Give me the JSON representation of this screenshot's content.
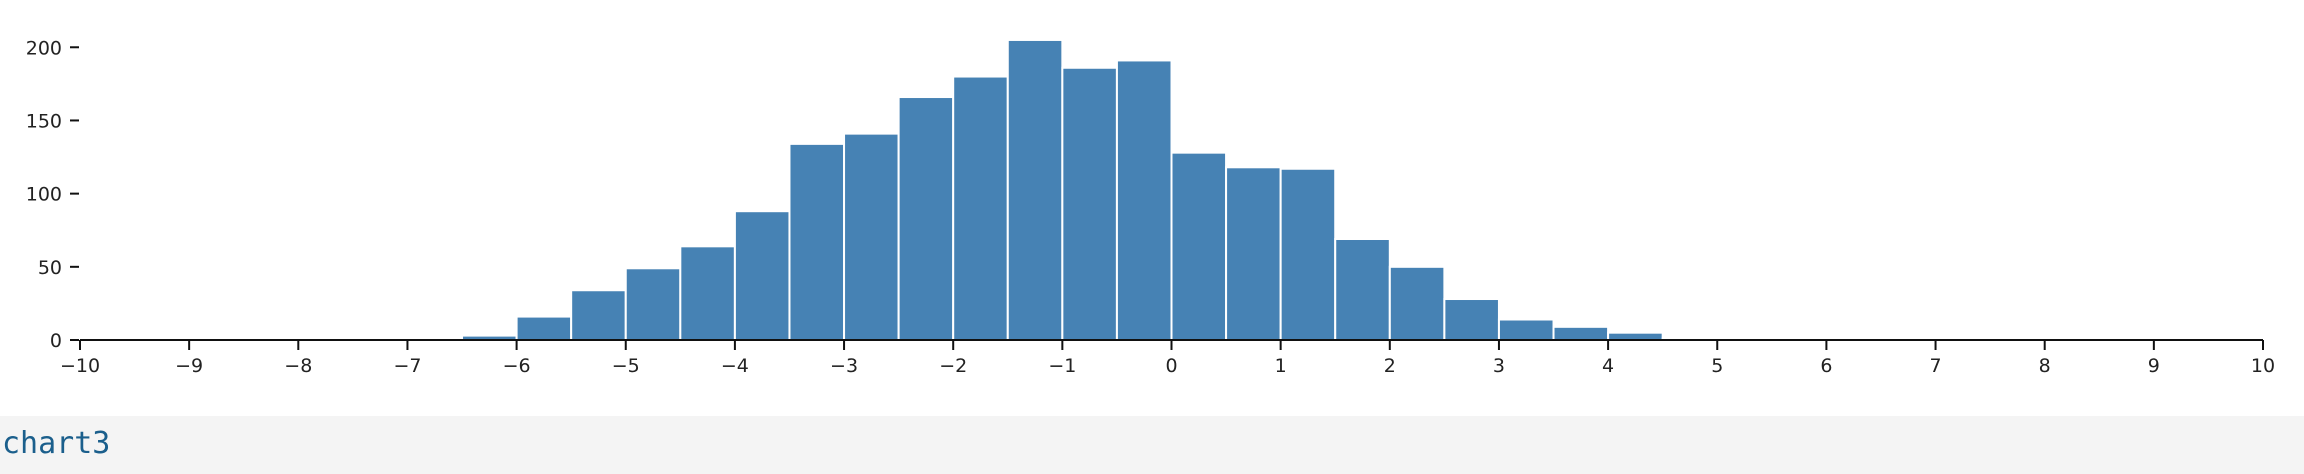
{
  "colors": {
    "bar": "#4682b4",
    "axis": "#111111",
    "footer_bg": "#f4f4f4",
    "footer_text": "#1b5f8c"
  },
  "footer": {
    "label": "chart3"
  },
  "chart_data": {
    "type": "bar",
    "title": "",
    "xlabel": "",
    "ylabel": "",
    "xlim": [
      -10,
      10
    ],
    "ylim": [
      0,
      220
    ],
    "bin_width": 0.5,
    "grid": false,
    "x_ticks": [
      -10,
      -9,
      -8,
      -7,
      -6,
      -5,
      -4,
      -3,
      -2,
      -1,
      0,
      1,
      2,
      3,
      4,
      5,
      6,
      7,
      8,
      9,
      10
    ],
    "x_tick_labels": [
      "−10",
      "−9",
      "−8",
      "−7",
      "−6",
      "−5",
      "−4",
      "−3",
      "−2",
      "−1",
      "0",
      "1",
      "2",
      "3",
      "4",
      "5",
      "6",
      "7",
      "8",
      "9",
      "10"
    ],
    "y_ticks": [
      0,
      50,
      100,
      150,
      200
    ],
    "y_tick_labels": [
      "0",
      "50",
      "100",
      "150",
      "200"
    ],
    "bins": [
      {
        "x0": -8.0,
        "x1": -7.5,
        "count": 1
      },
      {
        "x0": -7.5,
        "x1": -7.0,
        "count": 1
      },
      {
        "x0": -6.5,
        "x1": -6.0,
        "count": 3
      },
      {
        "x0": -6.0,
        "x1": -5.5,
        "count": 16
      },
      {
        "x0": -5.5,
        "x1": -5.0,
        "count": 34
      },
      {
        "x0": -5.0,
        "x1": -4.5,
        "count": 49
      },
      {
        "x0": -4.5,
        "x1": -4.0,
        "count": 64
      },
      {
        "x0": -4.0,
        "x1": -3.5,
        "count": 88
      },
      {
        "x0": -3.5,
        "x1": -3.0,
        "count": 134
      },
      {
        "x0": -3.0,
        "x1": -2.5,
        "count": 141
      },
      {
        "x0": -2.5,
        "x1": -2.0,
        "count": 166
      },
      {
        "x0": -2.0,
        "x1": -1.5,
        "count": 180
      },
      {
        "x0": -1.5,
        "x1": -1.0,
        "count": 205
      },
      {
        "x0": -1.0,
        "x1": -0.5,
        "count": 186
      },
      {
        "x0": -0.5,
        "x1": 0.0,
        "count": 191
      },
      {
        "x0": 0.0,
        "x1": 0.5,
        "count": 128
      },
      {
        "x0": 0.5,
        "x1": 1.0,
        "count": 118
      },
      {
        "x0": 1.0,
        "x1": 1.5,
        "count": 117
      },
      {
        "x0": 1.5,
        "x1": 2.0,
        "count": 69
      },
      {
        "x0": 2.0,
        "x1": 2.5,
        "count": 50
      },
      {
        "x0": 2.5,
        "x1": 3.0,
        "count": 28
      },
      {
        "x0": 3.0,
        "x1": 3.5,
        "count": 14
      },
      {
        "x0": 3.5,
        "x1": 4.0,
        "count": 9
      },
      {
        "x0": 4.0,
        "x1": 4.5,
        "count": 5
      },
      {
        "x0": 4.5,
        "x1": 5.0,
        "count": 1
      },
      {
        "x0": 5.0,
        "x1": 5.5,
        "count": 1
      },
      {
        "x0": 6.0,
        "x1": 6.5,
        "count": 1
      }
    ]
  }
}
